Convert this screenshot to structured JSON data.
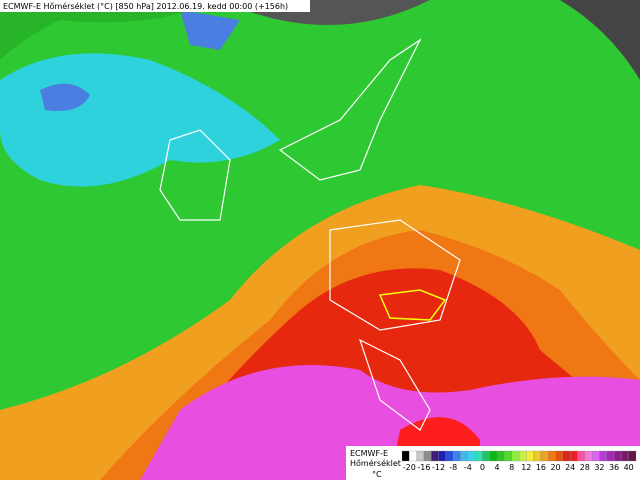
{
  "header": {
    "title": "ECMWF-E Hőmérséklet (°C) [850 hPa] 2012.06.19. kedd 00:00 (+156h)"
  },
  "legend": {
    "model": "ECMWF-E",
    "quantity": "Hőmérséklet",
    "unit": "°C",
    "ticks": [
      -20,
      -16,
      -12,
      -8,
      -4,
      0,
      4,
      8,
      12,
      16,
      20,
      24,
      28,
      32,
      36,
      40
    ],
    "colors": [
      "#000000",
      "#ffffff",
      "#c8c8c8",
      "#8c8c8c",
      "#3c1e78",
      "#1e1eb4",
      "#2850dc",
      "#3c82f0",
      "#46b4f0",
      "#3cd2e6",
      "#28e6b4",
      "#1ec864",
      "#14b41e",
      "#28c81e",
      "#50dc28",
      "#8cf03c",
      "#c8f03c",
      "#f0f03c",
      "#f0c828",
      "#f0a01e",
      "#f07814",
      "#e6500a",
      "#dc2814",
      "#f01e1e",
      "#ff50a0",
      "#f078dc",
      "#dc64f0",
      "#b43cdc",
      "#a028b4",
      "#8c1e8c",
      "#781e64",
      "#641446"
    ]
  }
}
